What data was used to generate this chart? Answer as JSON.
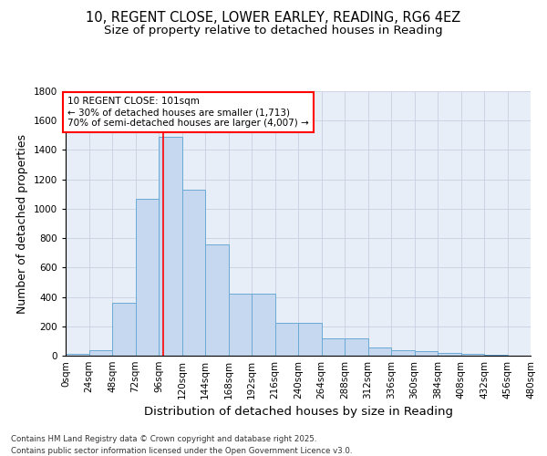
{
  "title_line1": "10, REGENT CLOSE, LOWER EARLEY, READING, RG6 4EZ",
  "title_line2": "Size of property relative to detached houses in Reading",
  "xlabel": "Distribution of detached houses by size in Reading",
  "ylabel": "Number of detached properties",
  "bar_values": [
    10,
    35,
    360,
    1070,
    1490,
    1130,
    760,
    425,
    425,
    225,
    225,
    115,
    115,
    55,
    40,
    30,
    20,
    10,
    5,
    2,
    0
  ],
  "bin_edges": [
    0,
    24,
    48,
    72,
    96,
    120,
    144,
    168,
    192,
    216,
    240,
    264,
    288,
    312,
    336,
    360,
    384,
    408,
    432,
    456,
    480
  ],
  "bin_labels": [
    "0sqm",
    "24sqm",
    "48sqm",
    "72sqm",
    "96sqm",
    "120sqm",
    "144sqm",
    "168sqm",
    "192sqm",
    "216sqm",
    "240sqm",
    "264sqm",
    "288sqm",
    "312sqm",
    "336sqm",
    "360sqm",
    "384sqm",
    "408sqm",
    "432sqm",
    "456sqm",
    "480sqm"
  ],
  "bar_color": "#c5d8f0",
  "bar_edge_color": "#6aaad4",
  "vline_x": 101,
  "vline_color": "red",
  "annotation_text": "10 REGENT CLOSE: 101sqm\n← 30% of detached houses are smaller (1,713)\n70% of semi-detached houses are larger (4,007) →",
  "annotation_box_color": "red",
  "annotation_text_color": "black",
  "ylim": [
    0,
    1800
  ],
  "yticks": [
    0,
    200,
    400,
    600,
    800,
    1000,
    1200,
    1400,
    1600,
    1800
  ],
  "grid_color": "#c8d0e0",
  "background_color": "#e8eef8",
  "footnote1": "Contains HM Land Registry data © Crown copyright and database right 2025.",
  "footnote2": "Contains public sector information licensed under the Open Government Licence v3.0.",
  "title_fontsize": 10.5,
  "subtitle_fontsize": 9.5,
  "axis_label_fontsize": 9,
  "tick_fontsize": 7.5,
  "annot_fontsize": 7.5
}
